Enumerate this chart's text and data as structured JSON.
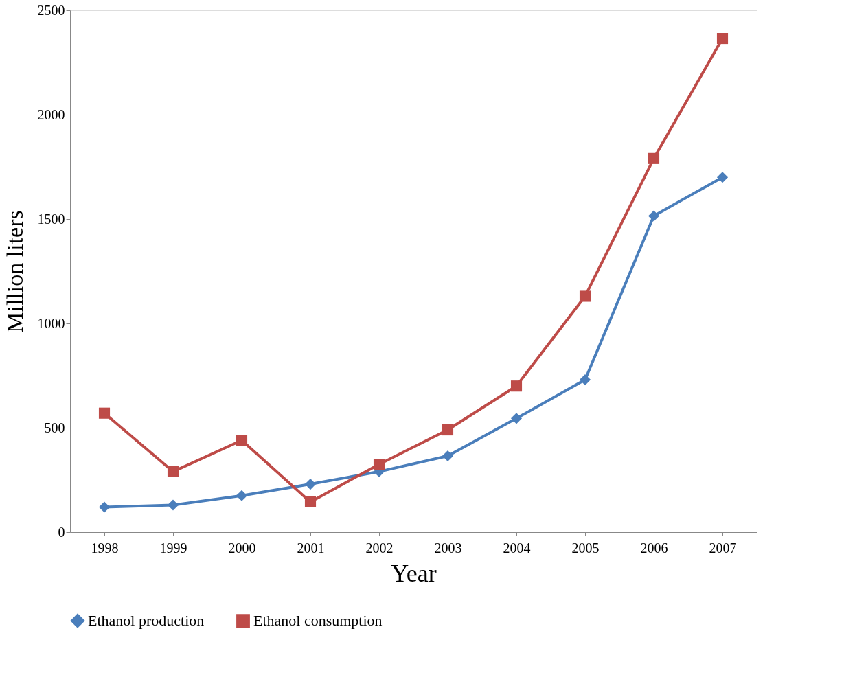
{
  "chart_data": {
    "type": "line",
    "xlabel": "Year",
    "ylabel": "Million liters",
    "categories": [
      "1998",
      "1999",
      "2000",
      "2001",
      "2002",
      "2003",
      "2004",
      "2005",
      "2006",
      "2007"
    ],
    "series": [
      {
        "name": "Ethanol production",
        "color": "#4a7ebb",
        "marker": "diamond",
        "values": [
          120,
          130,
          175,
          230,
          290,
          365,
          545,
          730,
          1515,
          1700
        ]
      },
      {
        "name": "Ethanol consumption",
        "color": "#be4b48",
        "marker": "square",
        "values": [
          570,
          290,
          440,
          145,
          325,
          490,
          700,
          1130,
          1790,
          2365
        ]
      }
    ],
    "ylim": [
      0,
      2500
    ],
    "yticks": [
      0,
      500,
      1000,
      1500,
      2000,
      2500
    ],
    "grid": false,
    "legend": "bottom"
  }
}
